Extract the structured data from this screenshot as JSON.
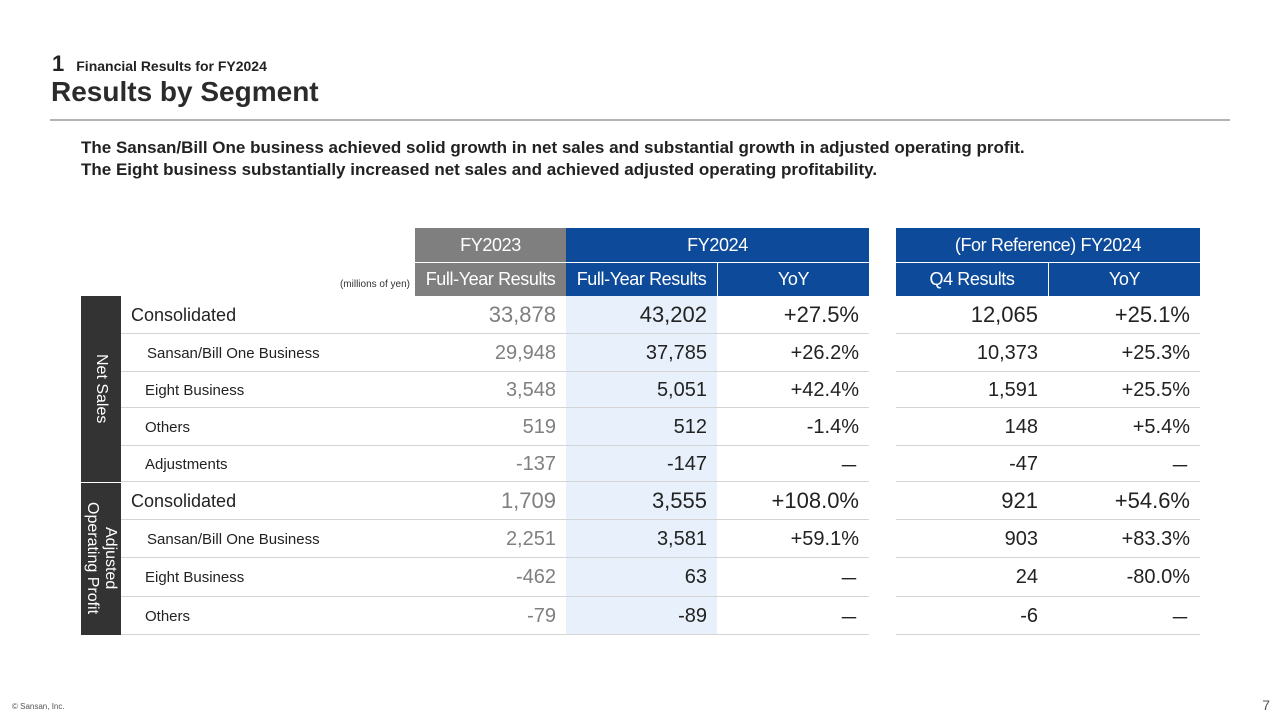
{
  "header": {
    "section_number": "1",
    "section_title": "Financial Results for FY2024",
    "page_title": "Results by Segment"
  },
  "summary": [
    "The Sansan/Bill One business achieved solid growth in net sales and substantial growth in adjusted operating profit.",
    "The Eight business substantially increased net sales and achieved adjusted operating profitability."
  ],
  "table": {
    "unit_note": "(millions of yen)",
    "top_headers": {
      "fy2023": "FY2023",
      "fy2024": "FY2024",
      "reference": "(For Reference) FY2024"
    },
    "sub_headers": {
      "fy2023_results": "Full-Year Results",
      "fy2024_results": "Full-Year Results",
      "fy2024_yoy": "YoY",
      "q4_results": "Q4 Results",
      "q4_yoy": "YoY"
    },
    "groups": {
      "net_sales": "Net Sales",
      "adjusted_operating_profit": "Adjusted\nOperating Profit"
    },
    "rows": [
      {
        "label": "Consolidated",
        "fy2023": "33,878",
        "fy2024": "43,202",
        "yoy": "+27.5%",
        "q4": "12,065",
        "q4_yoy": "+25.1%"
      },
      {
        "label": "Sansan/Bill One Business",
        "fy2023": "29,948",
        "fy2024": "37,785",
        "yoy": "+26.2%",
        "q4": "10,373",
        "q4_yoy": "+25.3%"
      },
      {
        "label": "Eight Business",
        "fy2023": "3,548",
        "fy2024": "5,051",
        "yoy": "+42.4%",
        "q4": "1,591",
        "q4_yoy": "+25.5%"
      },
      {
        "label": "Others",
        "fy2023": "519",
        "fy2024": "512",
        "yoy": "-1.4%",
        "q4": "148",
        "q4_yoy": "+5.4%"
      },
      {
        "label": "Adjustments",
        "fy2023": "-137",
        "fy2024": "-147",
        "yoy": "－",
        "q4": "-47",
        "q4_yoy": "－"
      },
      {
        "label": "Consolidated",
        "fy2023": "1,709",
        "fy2024": "3,555",
        "yoy": "+108.0%",
        "q4": "921",
        "q4_yoy": "+54.6%"
      },
      {
        "label": "Sansan/Bill One Business",
        "fy2023": "2,251",
        "fy2024": "3,581",
        "yoy": "+59.1%",
        "q4": "903",
        "q4_yoy": "+83.3%"
      },
      {
        "label": "Eight Business",
        "fy2023": "-462",
        "fy2024": "63",
        "yoy": "－",
        "q4": "24",
        "q4_yoy": "-80.0%"
      },
      {
        "label": "Others",
        "fy2023": "-79",
        "fy2024": "-89",
        "yoy": "－",
        "q4": "-6",
        "q4_yoy": "－"
      }
    ]
  },
  "footer": {
    "copyright": "© Sansan,  Inc.",
    "page_number": "7"
  },
  "colors": {
    "header_blue": "#0d4a9a",
    "header_gray": "#7f7f7f",
    "group_label_bg": "#333333",
    "fy2024_column_tint": "#e8f1fb"
  }
}
